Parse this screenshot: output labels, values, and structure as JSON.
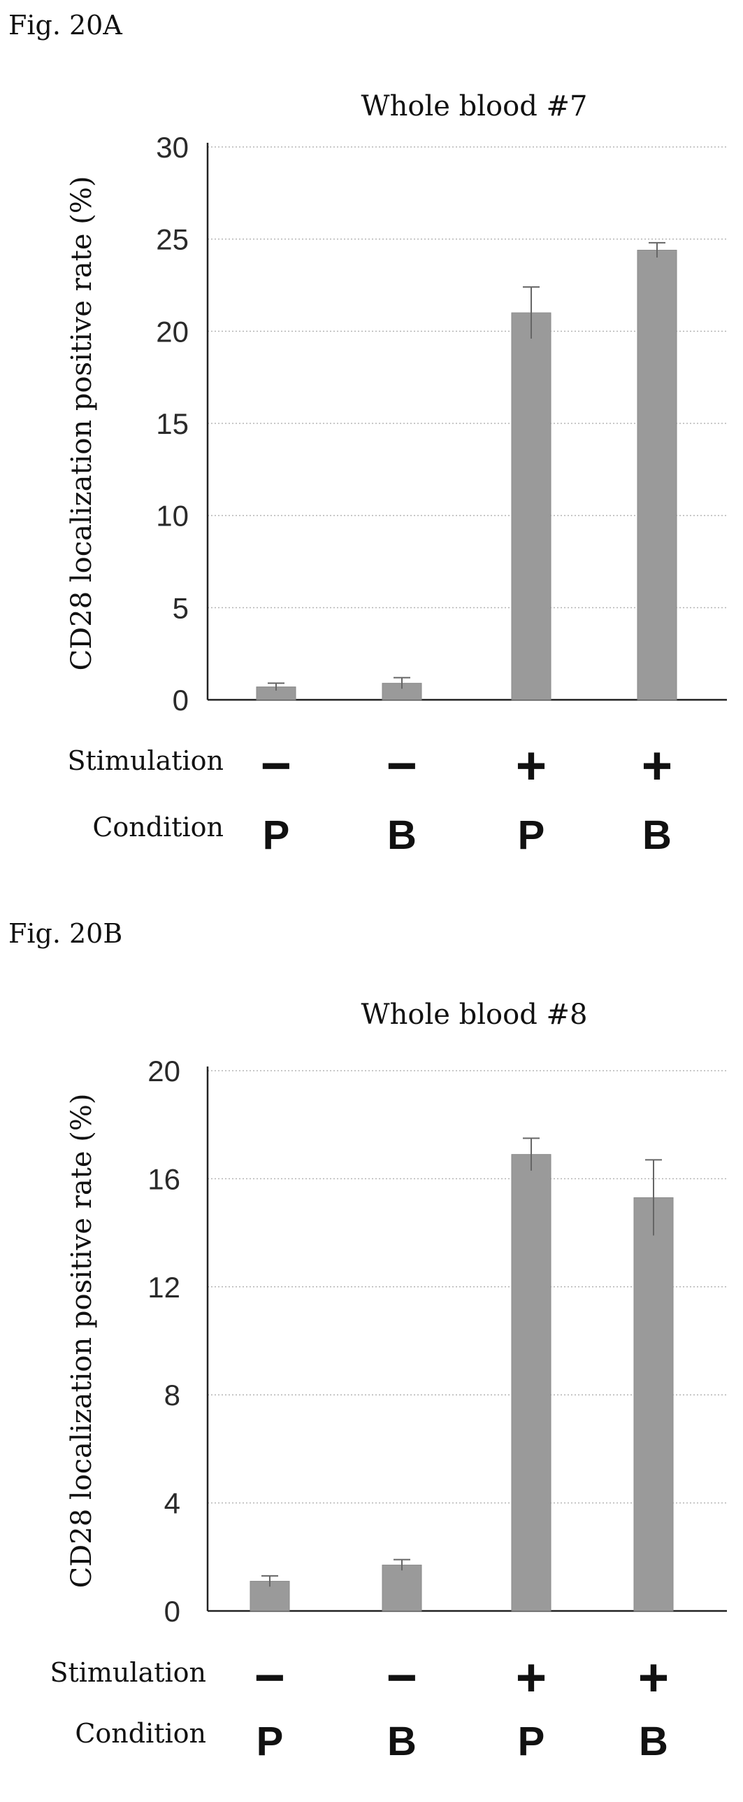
{
  "figures": [
    {
      "label": "Fig. 20A"
    },
    {
      "label": "Fig. 20B"
    }
  ],
  "row_labels": {
    "stimulation": "Stimulation",
    "condition": "Condition"
  },
  "chart_data": [
    {
      "type": "bar",
      "title": "Whole blood #7",
      "ylabel": "CD28 localization positive rate (%)",
      "xlabel": "",
      "ylim": [
        0,
        30
      ],
      "yticks": [
        0,
        5,
        10,
        15,
        20,
        25,
        30
      ],
      "grid": true,
      "categories": [
        {
          "stimulation": "−",
          "condition": "P"
        },
        {
          "stimulation": "−",
          "condition": "B"
        },
        {
          "stimulation": "+",
          "condition": "P"
        },
        {
          "stimulation": "+",
          "condition": "B"
        }
      ],
      "values": [
        0.7,
        0.9,
        21.0,
        24.4
      ],
      "errors": [
        0.2,
        0.3,
        1.4,
        0.4
      ],
      "bar_color": "#9a9a9a"
    },
    {
      "type": "bar",
      "title": "Whole blood #8",
      "ylabel": "CD28 localization positive rate (%)",
      "xlabel": "",
      "ylim": [
        0,
        20
      ],
      "yticks": [
        0,
        4,
        8,
        12,
        16,
        20
      ],
      "grid": true,
      "categories": [
        {
          "stimulation": "−",
          "condition": "P"
        },
        {
          "stimulation": "−",
          "condition": "B"
        },
        {
          "stimulation": "+",
          "condition": "P"
        },
        {
          "stimulation": "+",
          "condition": "B"
        }
      ],
      "values": [
        1.1,
        1.7,
        16.9,
        15.3
      ],
      "errors": [
        0.2,
        0.2,
        0.6,
        1.4
      ],
      "bar_color": "#9a9a9a"
    }
  ]
}
